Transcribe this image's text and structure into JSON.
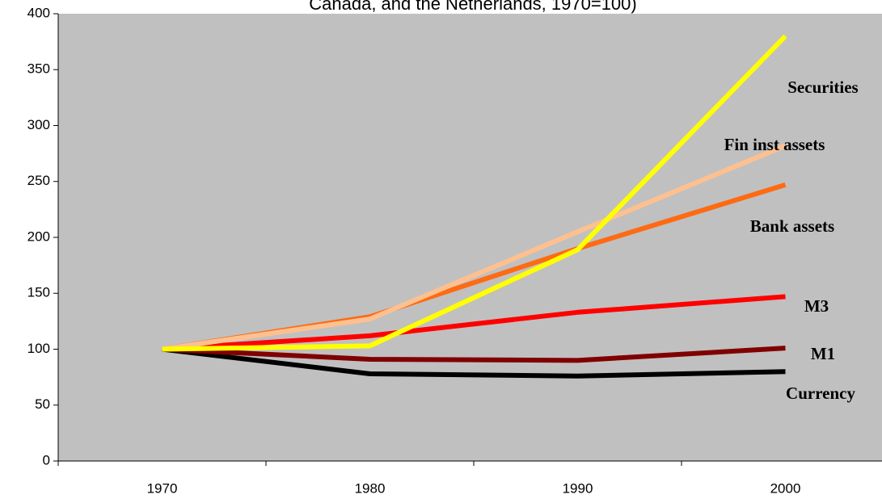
{
  "chart_data": {
    "type": "line",
    "title": "Canada, and the Netherlands, 1970=100)",
    "categories": [
      "1970",
      "1980",
      "1990",
      "2000"
    ],
    "series": [
      {
        "name": "Currency",
        "color": "#000000",
        "values": [
          100,
          78,
          76,
          80
        ]
      },
      {
        "name": "M1",
        "color": "#800000",
        "values": [
          100,
          91,
          90,
          101
        ]
      },
      {
        "name": "M3",
        "color": "#ff0000",
        "values": [
          100,
          112,
          133,
          147
        ]
      },
      {
        "name": "Bank assets",
        "color": "#ff6a13",
        "values": [
          100,
          129,
          190,
          247
        ]
      },
      {
        "name": "Fin inst assets",
        "color": "#ffc090",
        "values": [
          100,
          127,
          205,
          282
        ]
      },
      {
        "name": "Securities",
        "color": "#ffff00",
        "values": [
          100,
          103,
          189,
          380
        ]
      }
    ],
    "ylim": [
      0,
      400
    ],
    "yticks": [
      0,
      50,
      100,
      150,
      200,
      250,
      300,
      350,
      400
    ]
  }
}
